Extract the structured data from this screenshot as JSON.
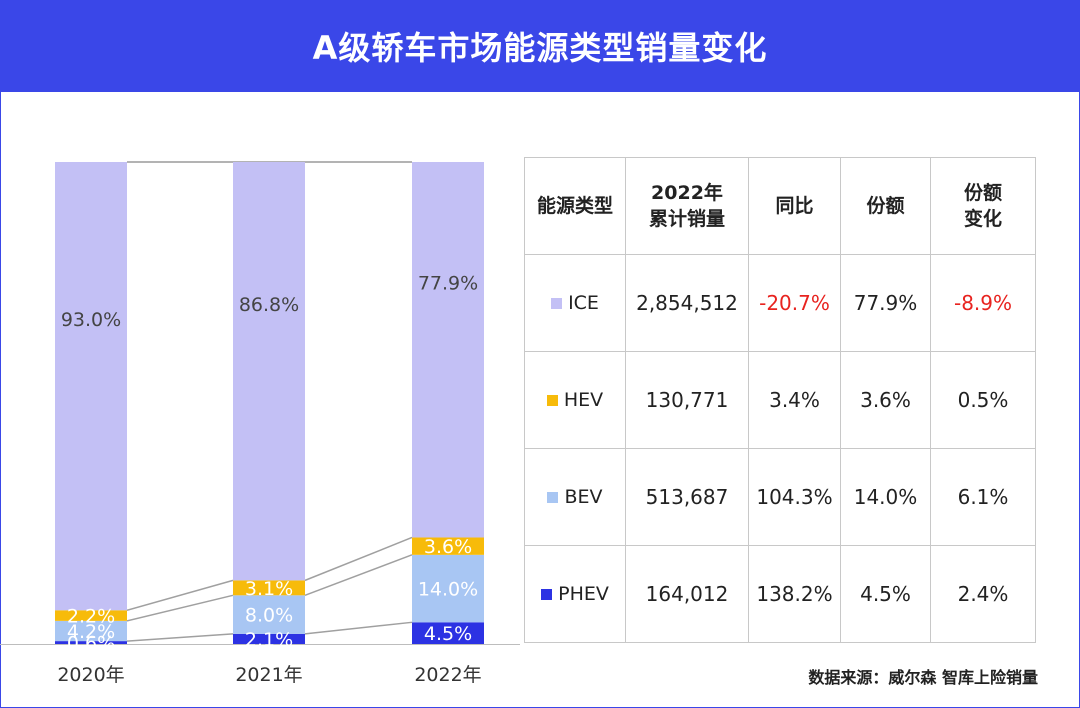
{
  "header": {
    "title": "A级轿车市场能源类型销量变化"
  },
  "colors": {
    "header": "#3a47e8",
    "ICE": "#c3c0f5",
    "HEV": "#f7bb0a",
    "BEV": "#a8c6f3",
    "PHEV": "#2c32e3",
    "negative": "#e8231f"
  },
  "chart_data": {
    "type": "bar",
    "stacked": true,
    "percent": true,
    "categories": [
      "2020年",
      "2021年",
      "2022年"
    ],
    "series": [
      {
        "name": "PHEV",
        "values": [
          0.6,
          2.1,
          4.5
        ],
        "labels": [
          "0.6%",
          "2.1%",
          "4.5%"
        ]
      },
      {
        "name": "BEV",
        "values": [
          4.2,
          8.0,
          14.0
        ],
        "labels": [
          "4.2%",
          "8.0%",
          "14.0%"
        ]
      },
      {
        "name": "HEV",
        "values": [
          2.2,
          3.1,
          3.6
        ],
        "labels": [
          "2.2%",
          "3.1%",
          "3.6%"
        ]
      },
      {
        "name": "ICE",
        "values": [
          93.0,
          86.8,
          77.9
        ],
        "labels": [
          "93.0%",
          "86.8%",
          "77.9%"
        ]
      }
    ],
    "ylim": [
      0,
      100
    ]
  },
  "table": {
    "headers": [
      "能源类型",
      "2022年\n累计销量",
      "同比",
      "份额",
      "份额\n变化"
    ],
    "rows": [
      {
        "type": "ICE",
        "sales": "2,854,512",
        "yoy": "-20.7%",
        "share": "77.9%",
        "share_change": "-8.9%"
      },
      {
        "type": "HEV",
        "sales": "130,771",
        "yoy": "3.4%",
        "share": "3.6%",
        "share_change": "0.5%"
      },
      {
        "type": "BEV",
        "sales": "513,687",
        "yoy": "104.3%",
        "share": "14.0%",
        "share_change": "6.1%"
      },
      {
        "type": "PHEV",
        "sales": "164,012",
        "yoy": "138.2%",
        "share": "4.5%",
        "share_change": "2.4%"
      }
    ]
  },
  "source": "数据来源：威尔森 智库上险销量"
}
